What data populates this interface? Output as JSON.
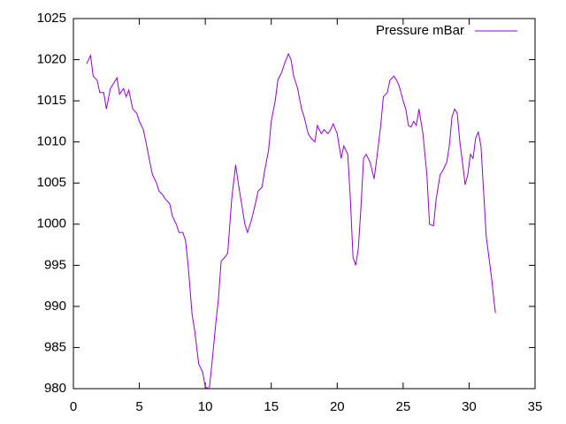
{
  "chart_data": {
    "type": "line",
    "x": [
      1.0,
      1.3,
      1.5,
      1.8,
      2.0,
      2.3,
      2.5,
      2.8,
      3.0,
      3.3,
      3.5,
      3.8,
      4.0,
      4.2,
      4.5,
      4.8,
      5.0,
      5.3,
      5.5,
      5.8,
      6.0,
      6.3,
      6.5,
      6.8,
      7.0,
      7.3,
      7.5,
      7.8,
      8.0,
      8.3,
      8.5,
      8.7,
      9.0,
      9.2,
      9.5,
      9.8,
      10.0,
      10.3,
      10.5,
      10.8,
      11.0,
      11.2,
      11.5,
      11.7,
      12.0,
      12.3,
      12.5,
      12.8,
      13.0,
      13.2,
      13.5,
      13.8,
      14.0,
      14.3,
      14.5,
      14.8,
      15.0,
      15.3,
      15.5,
      15.8,
      16.0,
      16.3,
      16.5,
      16.7,
      17.0,
      17.3,
      17.5,
      17.8,
      18.0,
      18.3,
      18.5,
      18.8,
      19.0,
      19.3,
      19.5,
      19.7,
      20.0,
      20.3,
      20.5,
      20.8,
      21.0,
      21.2,
      21.4,
      21.6,
      21.8,
      22.0,
      22.2,
      22.5,
      22.8,
      23.0,
      23.3,
      23.5,
      23.8,
      24.0,
      24.3,
      24.5,
      24.7,
      25.0,
      25.2,
      25.4,
      25.6,
      25.8,
      26.0,
      26.2,
      26.5,
      26.8,
      27.0,
      27.3,
      27.5,
      27.8,
      28.0,
      28.3,
      28.5,
      28.7,
      28.9,
      29.1,
      29.3,
      29.5,
      29.7,
      29.9,
      30.1,
      30.3,
      30.5,
      30.7,
      30.9,
      31.1,
      31.3,
      31.5,
      31.7,
      31.9,
      32.0
    ],
    "series": [
      {
        "name": "Pressure mBar",
        "color": "#9400d3",
        "values": [
          1019.5,
          1020.5,
          1018,
          1017.5,
          1016,
          1016,
          1014,
          1016.5,
          1017,
          1017.8,
          1015.8,
          1016.5,
          1015.5,
          1016.3,
          1014,
          1013.5,
          1012.5,
          1011.5,
          1010,
          1007.5,
          1006,
          1005,
          1004,
          1003.5,
          1003,
          1002.5,
          1001,
          1000,
          999,
          999,
          998,
          995,
          989,
          987,
          983,
          982,
          980.2,
          980,
          983,
          988,
          991,
          995.5,
          996,
          996.5,
          1003,
          1007.2,
          1005,
          1002,
          1000,
          999,
          1000.5,
          1002.5,
          1004,
          1004.5,
          1006.5,
          1009,
          1012.5,
          1015,
          1017.5,
          1018.5,
          1019.5,
          1020.7,
          1020,
          1018,
          1016.5,
          1014,
          1013,
          1011,
          1010.5,
          1010,
          1012,
          1011,
          1011.5,
          1011,
          1011.5,
          1012.2,
          1011,
          1008,
          1009.5,
          1008.5,
          1003,
          996,
          995,
          997,
          1002,
          1008,
          1008.5,
          1007.5,
          1005.5,
          1008,
          1012,
          1015.5,
          1016,
          1017.5,
          1018,
          1017.5,
          1016.8,
          1015,
          1014,
          1012,
          1011.8,
          1012.5,
          1012,
          1014,
          1011,
          1006,
          1000,
          999.8,
          1003,
          1006,
          1006.5,
          1007.5,
          1009.5,
          1013,
          1014,
          1013.5,
          1010,
          1007.5,
          1004.8,
          1006,
          1008.5,
          1008,
          1010.5,
          1011.2,
          1009.5,
          1004,
          998.5,
          996,
          993.5,
          990.5,
          989.2
        ]
      }
    ],
    "xlim": [
      0,
      35
    ],
    "xticks": [
      0,
      5,
      10,
      15,
      20,
      25,
      30,
      35
    ],
    "ylim": [
      980,
      1025
    ],
    "yticks": [
      980,
      985,
      990,
      995,
      1000,
      1005,
      1010,
      1015,
      1020,
      1025
    ],
    "legend": "top-right"
  }
}
